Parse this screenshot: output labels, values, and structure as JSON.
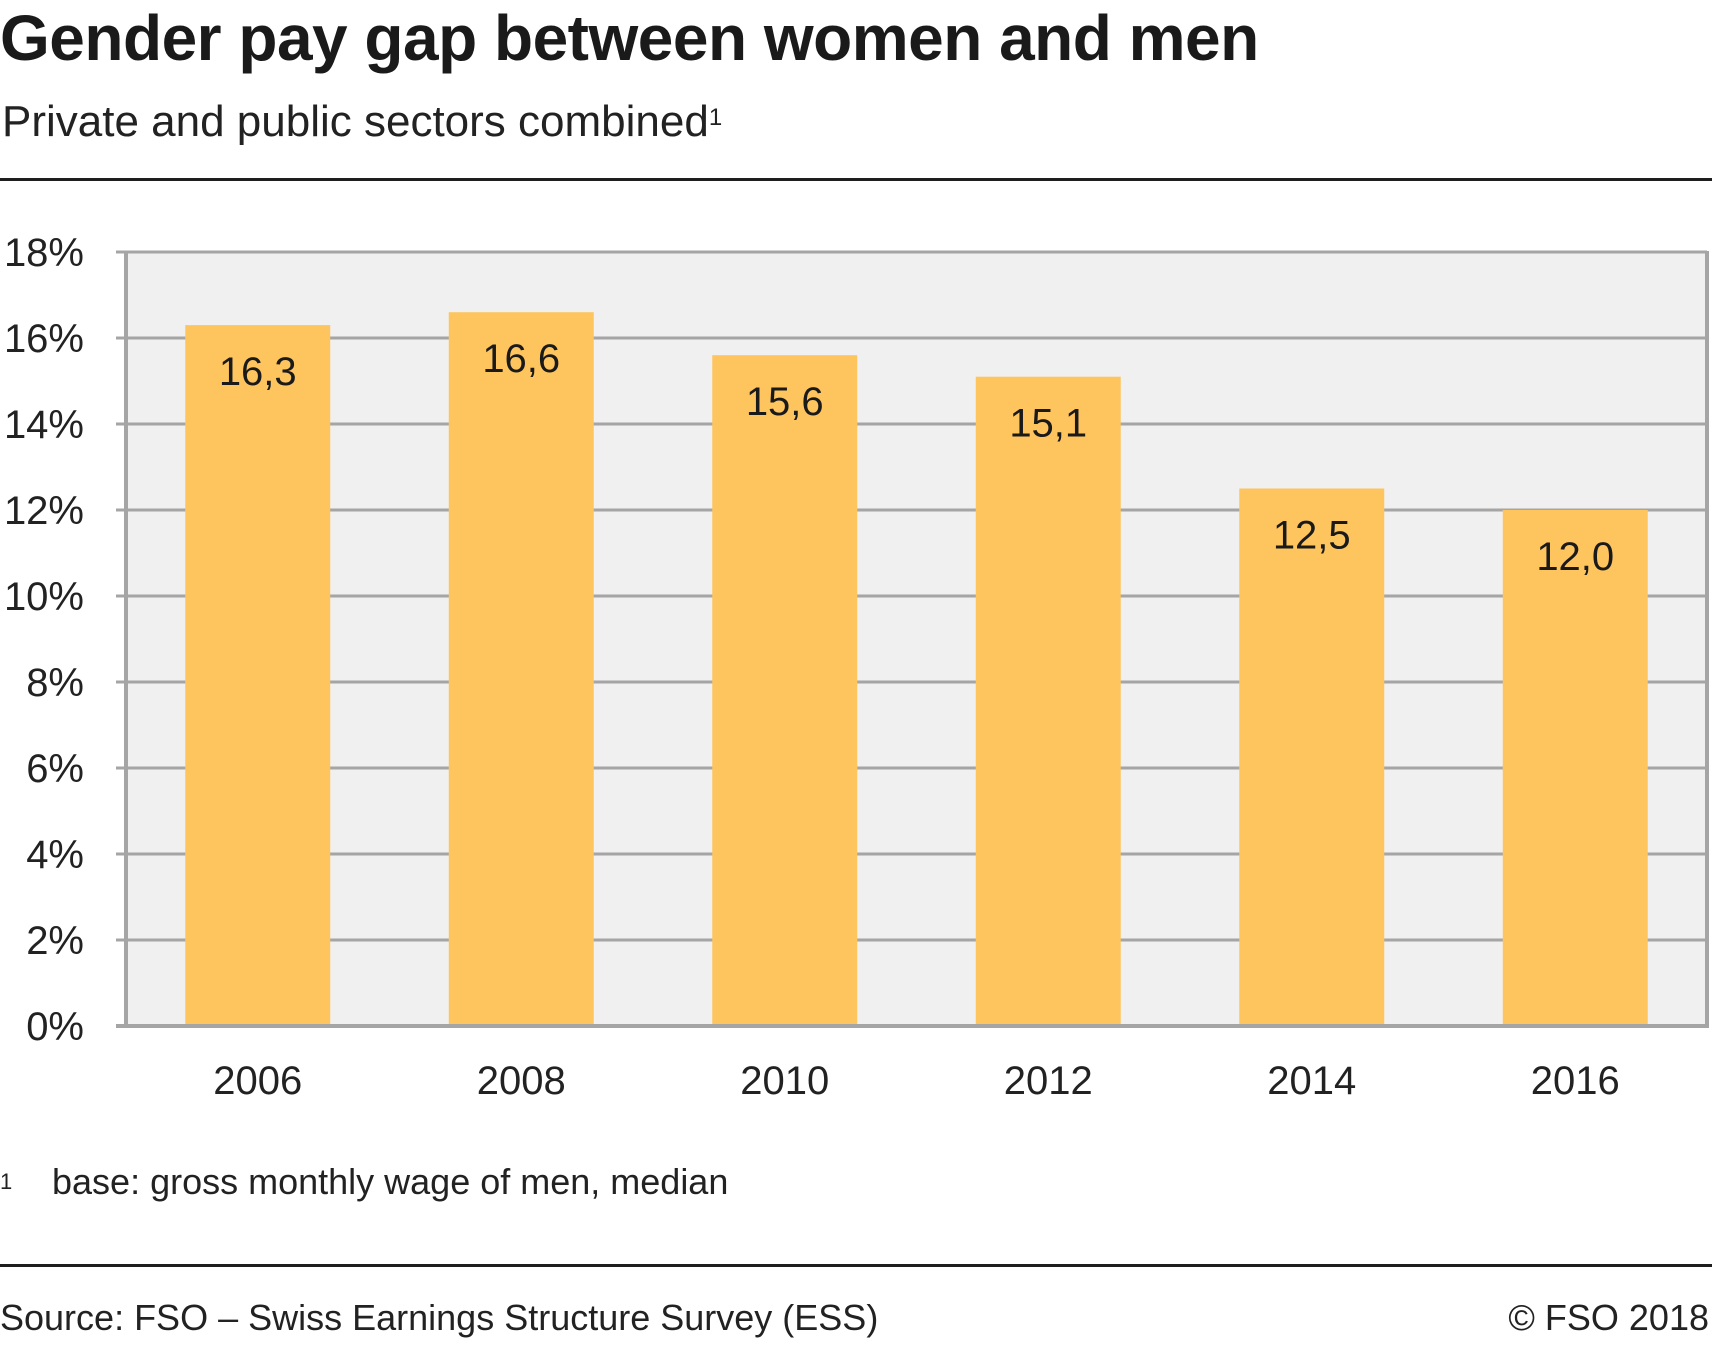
{
  "header": {
    "title": "Gender pay gap between women and men",
    "subtitle": "Private and public sectors combined",
    "subtitle_footnote_mark": "1"
  },
  "footnote": {
    "mark": "1",
    "text": "base: gross monthly wage of men, median"
  },
  "footer": {
    "source": "Source: FSO – Swiss Earnings Structure Survey (ESS)",
    "copyright": "© FSO 2018"
  },
  "colors": {
    "bar": "#FEC55F",
    "plot_background": "#F0F0F0",
    "gridline": "#A5A5A5",
    "text": "#1A1A1A"
  },
  "chart_data": {
    "type": "bar",
    "title": "Gender pay gap between women and men",
    "subtitle": "Private and public sectors combined",
    "xlabel": "",
    "ylabel": "",
    "categories": [
      "2006",
      "2008",
      "2010",
      "2012",
      "2014",
      "2016"
    ],
    "values": [
      16.3,
      16.6,
      15.6,
      15.1,
      12.5,
      12.0
    ],
    "value_labels": [
      "16,3",
      "16,6",
      "15,6",
      "15,1",
      "12,5",
      "12,0"
    ],
    "ylim": [
      0,
      18
    ],
    "yticks": [
      0,
      2,
      4,
      6,
      8,
      10,
      12,
      14,
      16,
      18
    ],
    "ytick_labels": [
      "0%",
      "2%",
      "4%",
      "6%",
      "8%",
      "10%",
      "12%",
      "14%",
      "16%",
      "18%"
    ],
    "unit": "%",
    "grid": true,
    "legend": "none"
  }
}
